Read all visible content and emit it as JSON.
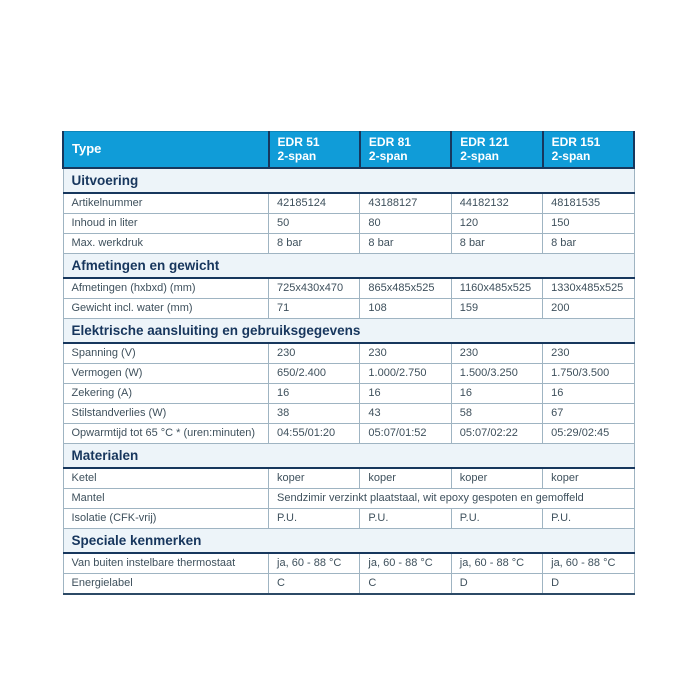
{
  "colors": {
    "header_blue": "#109cd8",
    "navy": "#17375d",
    "band_background": "#edf4f9",
    "body_text": "#3e505c",
    "grid_line": "#9fb4c2"
  },
  "table": {
    "corner_label": "Type",
    "columns": [
      {
        "model": "EDR 51",
        "variant": "2-span"
      },
      {
        "model": "EDR 81",
        "variant": "2-span"
      },
      {
        "model": "EDR 121",
        "variant": "2-span"
      },
      {
        "model": "EDR 151",
        "variant": "2-span"
      }
    ],
    "sections": [
      {
        "title": "Uitvoering",
        "rows": [
          {
            "label": "Artikelnummer",
            "values": [
              "42185124",
              "43188127",
              "44182132",
              "48181535"
            ]
          },
          {
            "label": "Inhoud in liter",
            "values": [
              "50",
              "80",
              "120",
              "150"
            ]
          },
          {
            "label": "Max. werkdruk",
            "values": [
              "8 bar",
              "8 bar",
              "8 bar",
              "8 bar"
            ]
          }
        ]
      },
      {
        "title": "Afmetingen en gewicht",
        "rows": [
          {
            "label": "Afmetingen (hxbxd) (mm)",
            "values": [
              "725x430x470",
              "865x485x525",
              "1160x485x525",
              "1330x485x525"
            ]
          },
          {
            "label": "Gewicht incl. water (mm)",
            "values": [
              "71",
              "108",
              "159",
              "200"
            ]
          }
        ]
      },
      {
        "title": "Elektrische aansluiting en gebruiksgegevens",
        "rows": [
          {
            "label": "Spanning (V)",
            "values": [
              "230",
              "230",
              "230",
              "230"
            ]
          },
          {
            "label": "Vermogen (W)",
            "values": [
              "650/2.400",
              "1.000/2.750",
              "1.500/3.250",
              "1.750/3.500"
            ]
          },
          {
            "label": "Zekering (A)",
            "values": [
              "16",
              "16",
              "16",
              "16"
            ]
          },
          {
            "label": "Stilstandverlies (W)",
            "values": [
              "38",
              "43",
              "58",
              "67"
            ]
          },
          {
            "label": "Opwarmtijd tot 65 °C * (uren:minuten)",
            "values": [
              "04:55/01:20",
              "05:07/01:52",
              "05:07/02:22",
              "05:29/02:45"
            ]
          }
        ]
      },
      {
        "title": "Materialen",
        "rows": [
          {
            "label": "Ketel",
            "values": [
              "koper",
              "koper",
              "koper",
              "koper"
            ]
          },
          {
            "label": "Mantel",
            "span_value": "Sendzimir verzinkt plaatstaal, wit epoxy gespoten en gemoffeld"
          },
          {
            "label": "Isolatie (CFK-vrij)",
            "values": [
              "P.U.",
              "P.U.",
              "P.U.",
              "P.U."
            ]
          }
        ]
      },
      {
        "title": "Speciale kenmerken",
        "rows": [
          {
            "label": "Van buiten instelbare thermostaat",
            "values": [
              "ja, 60 - 88 °C",
              "ja, 60 - 88 °C",
              "ja, 60 - 88 °C",
              "ja, 60 - 88 °C"
            ]
          },
          {
            "label": "Energielabel",
            "values": [
              "C",
              "C",
              "D",
              "D"
            ]
          }
        ]
      }
    ]
  }
}
